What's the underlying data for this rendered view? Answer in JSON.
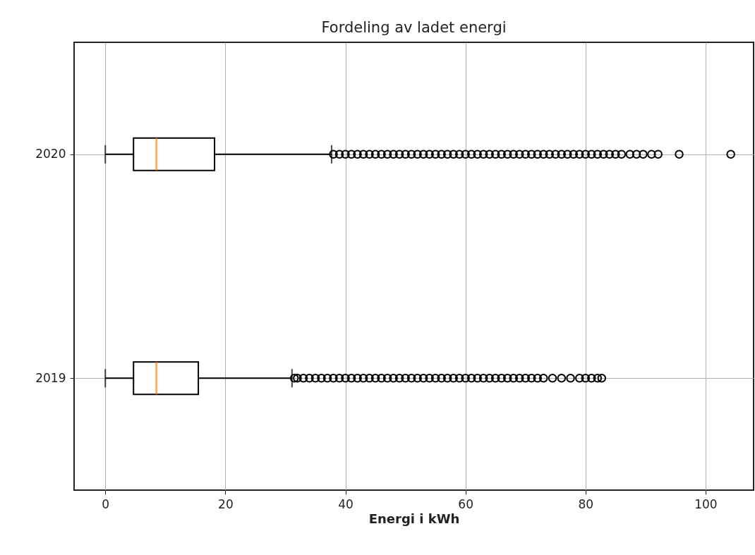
{
  "chart_data": {
    "type": "box",
    "title": "Fordeling av ladet energi",
    "xlabel": "Energi i kWh",
    "orientation": "horizontal",
    "categories": [
      "2020",
      "2019"
    ],
    "boxes": [
      {
        "low": 0,
        "q1": 4.7,
        "median": 8.5,
        "q3": 18.2,
        "high": 37.7,
        "outliers": [
          38,
          39,
          40,
          41,
          42,
          43,
          44,
          45,
          46,
          47,
          48,
          49,
          50,
          51,
          52,
          53,
          54,
          55,
          56,
          57,
          58,
          59,
          60,
          61,
          62,
          63,
          64,
          65,
          66,
          67,
          68,
          69,
          70,
          71,
          72,
          73,
          74,
          75,
          76,
          77,
          78,
          79,
          80,
          81,
          82,
          83,
          84,
          85,
          86,
          87.4,
          88.5,
          89.6,
          91,
          92.1,
          95.6,
          104.2
        ]
      },
      {
        "low": 0,
        "q1": 4.7,
        "median": 8.5,
        "q3": 15.5,
        "high": 31.1,
        "outliers": [
          31.5,
          32,
          33,
          34,
          35,
          36,
          37,
          38,
          39,
          40,
          41,
          42,
          43,
          44,
          45,
          46,
          47,
          48,
          49,
          50,
          51,
          52,
          53,
          54,
          55,
          56,
          57,
          58,
          59,
          60,
          61,
          62,
          63,
          64,
          65,
          66,
          67,
          68,
          69,
          70,
          71,
          72,
          73,
          74.5,
          76,
          77.5,
          79,
          80,
          81,
          82,
          82.7
        ]
      }
    ],
    "xlim": [
      -5.2,
      108
    ],
    "xticks": [
      0,
      20,
      40,
      60,
      80,
      100
    ],
    "grid": true,
    "marker": "circle"
  }
}
